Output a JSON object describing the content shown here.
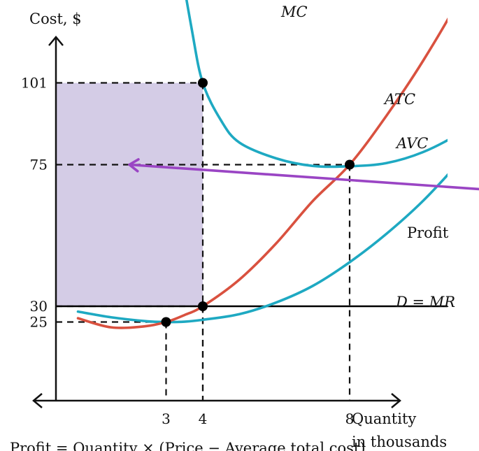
{
  "chart_data": {
    "type": "line",
    "ylabel": "Cost, $",
    "xlabel_lines": [
      "Quantity",
      "in thousands"
    ],
    "formula": "Profit = Quantity × (Price − Average total cost)",
    "x_ticks": [
      {
        "value": 3,
        "label": "3"
      },
      {
        "value": 4,
        "label": "4"
      },
      {
        "value": 8,
        "label": "8"
      }
    ],
    "y_ticks": [
      {
        "value": 101,
        "label": "101"
      },
      {
        "value": 75,
        "label": "75"
      },
      {
        "value": 30,
        "label": "30"
      },
      {
        "value": 25,
        "label": "25"
      }
    ],
    "series": [
      {
        "name": "MC",
        "color": "#d9513f",
        "points": [
          [
            0.6,
            26.2
          ],
          [
            1.5,
            23.3
          ],
          [
            2.4,
            23.6
          ],
          [
            3,
            25
          ],
          [
            3.5,
            27.2
          ],
          [
            4,
            30
          ],
          [
            5,
            38.5
          ],
          [
            6,
            50
          ],
          [
            7,
            63.5
          ],
          [
            8,
            75
          ],
          [
            9,
            90.5
          ],
          [
            10,
            108
          ],
          [
            11,
            128
          ],
          [
            12,
            152
          ],
          [
            12.95,
            176
          ]
        ]
      },
      {
        "name": "ATC",
        "color": "#1ea9c2",
        "points": [
          [
            2.9,
            182
          ],
          [
            3.3,
            146
          ],
          [
            3.7,
            118
          ],
          [
            4,
            101
          ],
          [
            4.5,
            89
          ],
          [
            5,
            82
          ],
          [
            6,
            77
          ],
          [
            7,
            74.6
          ],
          [
            8,
            74.5
          ],
          [
            9,
            75.5
          ],
          [
            10,
            79
          ],
          [
            11,
            85
          ],
          [
            12,
            93
          ],
          [
            13,
            103
          ],
          [
            14,
            114
          ],
          [
            15.3,
            127
          ]
        ]
      },
      {
        "name": "AVC",
        "color": "#1ea9c2",
        "points": [
          [
            0.6,
            28.3
          ],
          [
            1.5,
            26.5
          ],
          [
            2.5,
            25.2
          ],
          [
            3,
            25
          ],
          [
            3.5,
            25.1
          ],
          [
            4,
            25.7
          ],
          [
            5,
            27.5
          ],
          [
            6,
            31.2
          ],
          [
            7,
            36.5
          ],
          [
            8,
            44
          ],
          [
            9,
            53
          ],
          [
            10,
            63.5
          ],
          [
            11,
            76
          ],
          [
            12,
            89.5
          ],
          [
            13,
            103
          ],
          [
            14,
            116
          ],
          [
            15.3,
            132
          ]
        ]
      },
      {
        "name": "D = MR",
        "color": "#000000",
        "points": [
          [
            0,
            30
          ],
          [
            15.4,
            30
          ]
        ]
      }
    ],
    "points": [
      {
        "x": 4,
        "y": 101
      },
      {
        "x": 8,
        "y": 75
      },
      {
        "x": 4,
        "y": 30
      },
      {
        "x": 3,
        "y": 25
      }
    ],
    "profit_region": {
      "x": [
        0,
        4
      ],
      "y": [
        30,
        101
      ],
      "color": "#d4cce6"
    },
    "annotation": {
      "text": "Profit",
      "color": "#9a45c4",
      "from": [
        15.5,
        64
      ],
      "to": [
        2,
        75
      ]
    },
    "xlim": [
      0,
      15.4
    ],
    "ylim": [
      0,
      180
    ],
    "grid": false,
    "legend": "labels at curve ends"
  }
}
